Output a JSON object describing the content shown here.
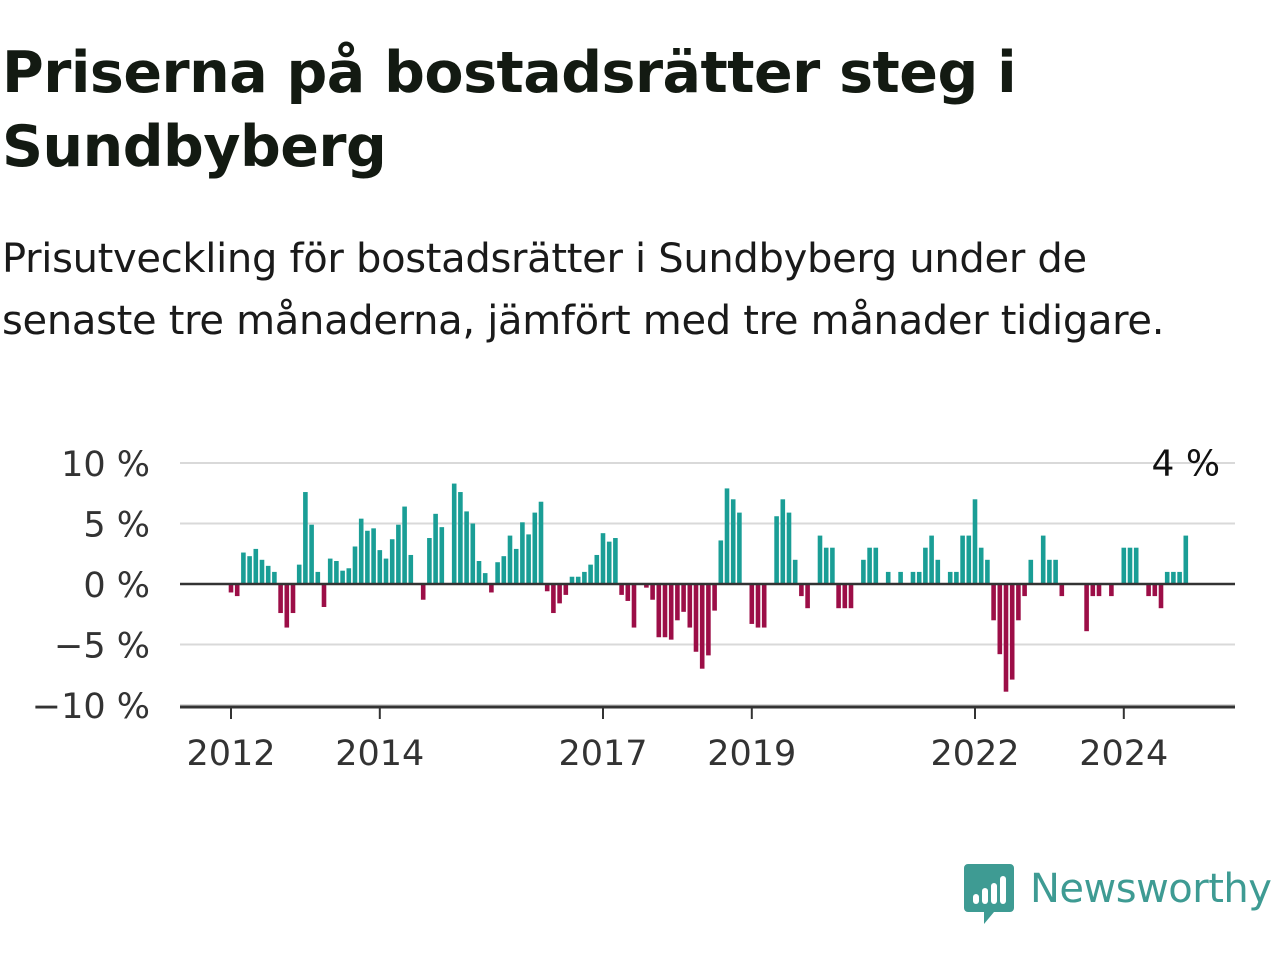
{
  "title": "Priserna på bostadsrätter steg i Sundbyberg",
  "subtitle": "Prisutveckling för bostadsrätter i Sundbyberg under de senaste tre månaderna, jämfört med tre månader tidigare.",
  "brand": {
    "name": "Newsworthy",
    "logo": "newsworthy-logo-icon"
  },
  "colors": {
    "positive": "#1a9e96",
    "negative": "#9c0e47",
    "zero_line": "#333333",
    "grid": "#d9d9d9",
    "brand": "#3e9b93"
  },
  "chart_data": {
    "type": "bar",
    "x_start": "2012-01",
    "x_unit": "month",
    "x_ticks": [
      {
        "label": "2012",
        "month": "2012-01"
      },
      {
        "label": "2014",
        "month": "2014-01"
      },
      {
        "label": "2017",
        "month": "2017-01"
      },
      {
        "label": "2019",
        "month": "2019-01"
      },
      {
        "label": "2022",
        "month": "2022-01"
      },
      {
        "label": "2024",
        "month": "2024-01"
      }
    ],
    "y_ticks": [
      {
        "label": "10 %",
        "value": 10
      },
      {
        "label": "5 %",
        "value": 5
      },
      {
        "label": "0 %",
        "value": 0
      },
      {
        "label": "−5 %",
        "value": -5
      },
      {
        "label": "−10 %",
        "value": -10
      }
    ],
    "ylim": [
      -10,
      10
    ],
    "grid": true,
    "last_label": "4 %",
    "values": [
      -0.7,
      -1.0,
      2.6,
      2.3,
      2.9,
      2.0,
      1.5,
      1.0,
      -2.4,
      -3.6,
      -2.4,
      1.6,
      7.6,
      4.9,
      1.0,
      -1.9,
      2.1,
      1.9,
      1.1,
      1.3,
      3.1,
      5.4,
      4.4,
      4.6,
      2.8,
      2.1,
      3.7,
      4.9,
      6.4,
      2.4,
      0.0,
      -1.3,
      3.8,
      5.8,
      4.7,
      0.0,
      8.3,
      7.6,
      6.0,
      5.0,
      1.9,
      0.9,
      -0.7,
      1.8,
      2.3,
      4.0,
      2.9,
      5.1,
      4.1,
      5.9,
      6.8,
      -0.6,
      -2.4,
      -1.6,
      -0.9,
      0.6,
      0.6,
      1.0,
      1.6,
      2.4,
      4.2,
      3.5,
      3.8,
      -0.9,
      -1.4,
      -3.6,
      0.0,
      -0.3,
      -1.3,
      -4.4,
      -4.4,
      -4.6,
      -3.0,
      -2.3,
      -3.6,
      -5.6,
      -7.0,
      -5.9,
      -2.2,
      3.6,
      7.9,
      7.0,
      5.9,
      0.0,
      -3.3,
      -3.6,
      -3.6,
      0.0,
      5.6,
      7.0,
      5.9,
      2.0,
      -1.0,
      -2.0,
      0.0,
      4.0,
      3.0,
      3.0,
      -2.0,
      -2.0,
      -2.0,
      0.0,
      2.0,
      3.0,
      3.0,
      0.0,
      1.0,
      0.0,
      1.0,
      0.0,
      1.0,
      1.0,
      3.0,
      4.0,
      2.0,
      0.0,
      1.0,
      1.0,
      4.0,
      4.0,
      7.0,
      3.0,
      2.0,
      -3.0,
      -5.8,
      -8.9,
      -7.9,
      -3.0,
      -1.0,
      2.0,
      0.0,
      4.0,
      2.0,
      2.0,
      -1.0,
      0.0,
      0.0,
      0.0,
      -3.9,
      -1.0,
      -1.0,
      0.0,
      -1.0,
      0.0,
      3.0,
      3.0,
      3.0,
      0.0,
      -1.0,
      -1.0,
      -2.0,
      1.0,
      1.0,
      1.0,
      4.0
    ]
  }
}
